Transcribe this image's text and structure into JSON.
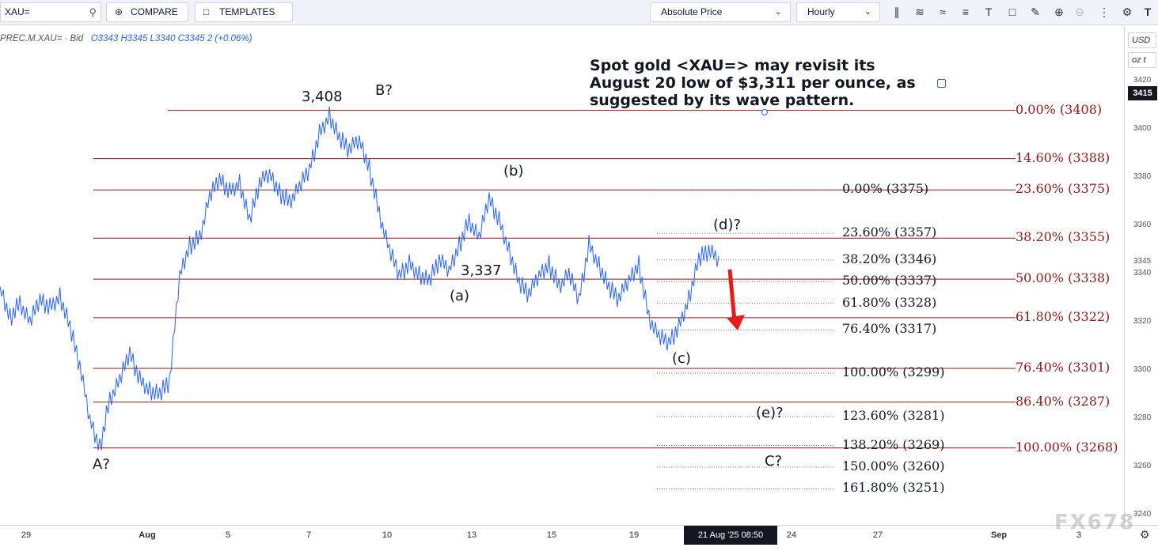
{
  "toolbar": {
    "symbol": "XAU=",
    "compare_label": "COMPARE",
    "templates_label": "TEMPLATES",
    "price_mode": "Absolute Price",
    "interval": "Hourly",
    "icons": [
      "candles-icon",
      "indicators-icon",
      "studies-icon",
      "lines-icon",
      "text-icon",
      "shapes-icon",
      "draw-icon",
      "zoom-in-icon",
      "zoom-out-icon",
      "more-icon",
      "settings-icon",
      "logo-icon"
    ]
  },
  "legend": {
    "symbol": "PREC.M.XAU= · Bid",
    "open": "O3343",
    "high": "H3345",
    "low": "L3340",
    "close": "C3345",
    "change": "2 (+0.06%)"
  },
  "price_axis": {
    "currency": "USD",
    "unit": "oz t",
    "last_price": "3415",
    "ticks": [
      "3420",
      "3400",
      "3380",
      "3360",
      "3345",
      "3340",
      "3320",
      "3300",
      "3280",
      "3260",
      "3240"
    ]
  },
  "time_axis": {
    "ticks": [
      "29",
      "Aug",
      "5",
      "7",
      "10",
      "13",
      "15",
      "19",
      "24",
      "27",
      "Sep",
      "3"
    ],
    "crosshair_label": "21 Aug '25   08:50"
  },
  "annotation": "Spot gold <XAU=> may revisit its August 20 low of $3,311 per ounce, as suggested by its wave pattern.",
  "watermark": "FX678",
  "chart_data": {
    "type": "line",
    "title": "",
    "ylim": [
      3232,
      3432
    ],
    "colors": {
      "price": "#2962ff",
      "fib_major": "#8b1a1a",
      "fib_minor": "#777777",
      "arrow": "#e51d1d"
    },
    "wave_labels": [
      {
        "text": "A?",
        "price": 3266,
        "date": "Jul 31"
      },
      {
        "text": "3,408",
        "price": 3408,
        "date": "Aug 7"
      },
      {
        "text": "B?",
        "price": 3408,
        "date": "Aug 9"
      },
      {
        "text": "(a)",
        "price": 3337,
        "date": "Aug 12"
      },
      {
        "text": "3,337",
        "price": 3337,
        "date": "Aug 13"
      },
      {
        "text": "(b)",
        "price": 3375,
        "date": "Aug 14"
      },
      {
        "text": "(c)",
        "price": 3311,
        "date": "Aug 20"
      },
      {
        "text": "(d)?",
        "price": 3352,
        "date": "Aug 21"
      },
      {
        "text": "(e)?",
        "price": 3290,
        "date": "Aug 23"
      },
      {
        "text": "C?",
        "price": 3270,
        "date": "Aug 23"
      }
    ],
    "fib_major": [
      {
        "label": "0.00% (3408)",
        "price": 3408
      },
      {
        "label": "14.60% (3388)",
        "price": 3388
      },
      {
        "label": "23.60% (3375)",
        "price": 3375
      },
      {
        "label": "38.20% (3355)",
        "price": 3355
      },
      {
        "label": "50.00% (3338)",
        "price": 3338
      },
      {
        "label": "61.80% (3322)",
        "price": 3322
      },
      {
        "label": "76.40% (3301)",
        "price": 3301
      },
      {
        "label": "86.40% (3287)",
        "price": 3287
      },
      {
        "label": "100.00% (3268)",
        "price": 3268
      }
    ],
    "fib_minor": [
      {
        "label": "0.00% (3375)",
        "price": 3375
      },
      {
        "label": "23.60% (3357)",
        "price": 3357
      },
      {
        "label": "38.20% (3346)",
        "price": 3346
      },
      {
        "label": "50.00% (3337)",
        "price": 3337
      },
      {
        "label": "61.80% (3328)",
        "price": 3328
      },
      {
        "label": "76.40% (3317)",
        "price": 3317
      },
      {
        "label": "100.00% (3299)",
        "price": 3299
      },
      {
        "label": "123.60% (3281)",
        "price": 3281
      },
      {
        "label": "138.20% (3269)",
        "price": 3269
      },
      {
        "label": "150.00% (3260)",
        "price": 3260
      },
      {
        "label": "161.80% (3251)",
        "price": 3251
      }
    ],
    "price_path": [
      [
        "Jul 28 a",
        3335
      ],
      [
        "Jul 28 b",
        3322
      ],
      [
        "Jul 28 c",
        3328
      ],
      [
        "Jul 29 a",
        3320
      ],
      [
        "Jul 29 b",
        3330
      ],
      [
        "Jul 29 c",
        3326
      ],
      [
        "Jul 30 a",
        3331
      ],
      [
        "Jul 30 b",
        3318
      ],
      [
        "Jul 30 c",
        3302
      ],
      [
        "Jul 31 a",
        3280
      ],
      [
        "Jul 31 b",
        3268
      ],
      [
        "Jul 31 c",
        3288
      ],
      [
        "Aug 1 a",
        3296
      ],
      [
        "Aug 1 b",
        3308
      ],
      [
        "Aug 1 c",
        3296
      ],
      [
        "Aug 1 d",
        3292
      ],
      [
        "Aug 2 a",
        3290
      ],
      [
        "Aug 2 b",
        3296
      ],
      [
        "Aug 4 a",
        3340
      ],
      [
        "Aug 4 b",
        3352
      ],
      [
        "Aug 4 c",
        3355
      ],
      [
        "Aug 5 a",
        3372
      ],
      [
        "Aug 5 b",
        3380
      ],
      [
        "Aug 5 c",
        3374
      ],
      [
        "Aug 5 d",
        3378
      ],
      [
        "Aug 6 a",
        3362
      ],
      [
        "Aug 6 b",
        3378
      ],
      [
        "Aug 6 c",
        3382
      ],
      [
        "Aug 6 d",
        3374
      ],
      [
        "Aug 7 a",
        3370
      ],
      [
        "Aug 7 b",
        3376
      ],
      [
        "Aug 7 c",
        3384
      ],
      [
        "Aug 8 a",
        3398
      ],
      [
        "Aug 8 b",
        3406
      ],
      [
        "Aug 8 c",
        3396
      ],
      [
        "Aug 8 d",
        3392
      ],
      [
        "Aug 9 a",
        3396
      ],
      [
        "Aug 10 a",
        3384
      ],
      [
        "Aug 11 a",
        3365
      ],
      [
        "Aug 11 b",
        3350
      ],
      [
        "Aug 11 c",
        3340
      ],
      [
        "Aug 12 a",
        3344
      ],
      [
        "Aug 12 b",
        3340
      ],
      [
        "Aug 12 c",
        3337
      ],
      [
        "Aug 13 a",
        3346
      ],
      [
        "Aug 13 b",
        3342
      ],
      [
        "Aug 13 c",
        3352
      ],
      [
        "Aug 14 a",
        3362
      ],
      [
        "Aug 14 b",
        3355
      ],
      [
        "Aug 14 c",
        3372
      ],
      [
        "Aug 14 d",
        3362
      ],
      [
        "Aug 15 a",
        3350
      ],
      [
        "Aug 15 b",
        3336
      ],
      [
        "Aug 15 c",
        3332
      ],
      [
        "Aug 15 d",
        3340
      ],
      [
        "Aug 18 a",
        3344
      ],
      [
        "Aug 18 b",
        3335
      ],
      [
        "Aug 18 c",
        3340
      ],
      [
        "Aug 18 d",
        3330
      ],
      [
        "Aug 19 a",
        3352
      ],
      [
        "Aug 19 b",
        3344
      ],
      [
        "Aug 19 c",
        3334
      ],
      [
        "Aug 19 d",
        3330
      ],
      [
        "Aug 20 a",
        3338
      ],
      [
        "Aug 20 b",
        3344
      ],
      [
        "Aug 20 c",
        3322
      ],
      [
        "Aug 20 d",
        3314
      ],
      [
        "Aug 20 e",
        3312
      ],
      [
        "Aug 20 f",
        3318
      ],
      [
        "Aug 21 a",
        3330
      ],
      [
        "Aug 21 b",
        3346
      ],
      [
        "Aug 21 c",
        3350
      ],
      [
        "Aug 21 d",
        3346
      ]
    ]
  }
}
